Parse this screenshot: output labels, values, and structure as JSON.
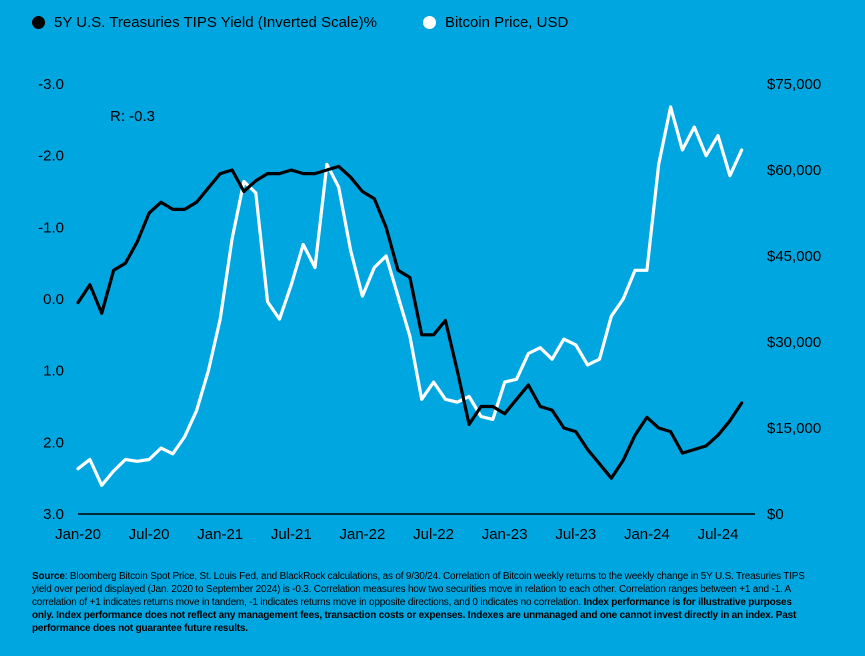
{
  "legend": {
    "tips_label": "5Y U.S. Treasuries TIPS Yield (Inverted Scale)%",
    "btc_label": "Bitcoin Price, USD"
  },
  "annotation": "R: -0.3",
  "footnote": {
    "source_label": "Source",
    "source_text": ": Bloomberg Bitcoin Spot Price, St. Louis Fed, and BlackRock calculations, as of 9/30/24. Correlation of Bitcoin weekly returns to the weekly change in 5Y U.S. Treasuries TIPS yield over period displayed (Jan. 2020 to September 2024) is -0.3. Correlation measures how two securities move in relation to each other. Correlation ranges between +1 and -1. A correlation of +1 indicates returns move in tandem, -1 indicates returns move in opposite directions, and 0 indicates no correlation.",
    "bold_text": "Index performance is for illustrative purposes only. Index performance does not reflect any management fees, transaction costs or expenses. Indexes are unmanaged and one cannot invest directly in an index. Past performance does not guarantee future results."
  },
  "chart_data": {
    "type": "line",
    "x_ticks": [
      "Jan-20",
      "Jul-20",
      "Jan-21",
      "Jul-21",
      "Jan-22",
      "Jul-22",
      "Jan-23",
      "Jul-23",
      "Jan-24",
      "Jul-24"
    ],
    "x_range": [
      "2019-12",
      "2024-09"
    ],
    "y_left": {
      "ticks": [
        "-3.0",
        "-2.0",
        "-1.0",
        "0.0",
        "1.0",
        "2.0",
        "3.0"
      ],
      "range": [
        3.0,
        -3.0
      ],
      "inverted": true
    },
    "y_right": {
      "ticks": [
        "$75,000",
        "$60,000",
        "$45,000",
        "$30,000",
        "$15,000",
        "$0"
      ],
      "range": [
        0,
        75000
      ]
    },
    "series": [
      {
        "name": "5Y U.S. Treasuries TIPS Yield (Inverted Scale)%",
        "axis": "left",
        "color": "#000000",
        "points": [
          [
            "2020-01",
            0.05
          ],
          [
            "2020-02",
            -0.2
          ],
          [
            "2020-03",
            0.2
          ],
          [
            "2020-04",
            -0.4
          ],
          [
            "2020-05",
            -0.5
          ],
          [
            "2020-06",
            -0.8
          ],
          [
            "2020-07",
            -1.2
          ],
          [
            "2020-08",
            -1.35
          ],
          [
            "2020-09",
            -1.25
          ],
          [
            "2020-10",
            -1.25
          ],
          [
            "2020-11",
            -1.35
          ],
          [
            "2020-12",
            -1.55
          ],
          [
            "2021-01",
            -1.75
          ],
          [
            "2021-02",
            -1.8
          ],
          [
            "2021-03",
            -1.5
          ],
          [
            "2021-04",
            -1.65
          ],
          [
            "2021-05",
            -1.75
          ],
          [
            "2021-06",
            -1.75
          ],
          [
            "2021-07",
            -1.8
          ],
          [
            "2021-08",
            -1.75
          ],
          [
            "2021-09",
            -1.75
          ],
          [
            "2021-10",
            -1.8
          ],
          [
            "2021-11",
            -1.85
          ],
          [
            "2021-12",
            -1.7
          ],
          [
            "2022-01",
            -1.5
          ],
          [
            "2022-02",
            -1.4
          ],
          [
            "2022-03",
            -1.0
          ],
          [
            "2022-04",
            -0.4
          ],
          [
            "2022-05",
            -0.3
          ],
          [
            "2022-06",
            0.5
          ],
          [
            "2022-07",
            0.5
          ],
          [
            "2022-08",
            0.3
          ],
          [
            "2022-09",
            1.0
          ],
          [
            "2022-10",
            1.75
          ],
          [
            "2022-11",
            1.5
          ],
          [
            "2022-12",
            1.5
          ],
          [
            "2023-01",
            1.6
          ],
          [
            "2023-02",
            1.4
          ],
          [
            "2023-03",
            1.2
          ],
          [
            "2023-04",
            1.5
          ],
          [
            "2023-05",
            1.55
          ],
          [
            "2023-06",
            1.8
          ],
          [
            "2023-07",
            1.85
          ],
          [
            "2023-08",
            2.1
          ],
          [
            "2023-09",
            2.3
          ],
          [
            "2023-10",
            2.5
          ],
          [
            "2023-11",
            2.25
          ],
          [
            "2023-12",
            1.9
          ],
          [
            "2024-01",
            1.65
          ],
          [
            "2024-02",
            1.8
          ],
          [
            "2024-03",
            1.85
          ],
          [
            "2024-04",
            2.15
          ],
          [
            "2024-05",
            2.1
          ],
          [
            "2024-06",
            2.05
          ],
          [
            "2024-07",
            1.9
          ],
          [
            "2024-08",
            1.7
          ],
          [
            "2024-09",
            1.45
          ]
        ]
      },
      {
        "name": "Bitcoin Price, USD",
        "axis": "right",
        "color": "#ffffff",
        "points": [
          [
            "2020-01",
            7900
          ],
          [
            "2020-02",
            9500
          ],
          [
            "2020-03",
            5000
          ],
          [
            "2020-04",
            7500
          ],
          [
            "2020-05",
            9500
          ],
          [
            "2020-06",
            9200
          ],
          [
            "2020-07",
            9500
          ],
          [
            "2020-08",
            11500
          ],
          [
            "2020-09",
            10500
          ],
          [
            "2020-10",
            13500
          ],
          [
            "2020-11",
            18000
          ],
          [
            "2020-12",
            25000
          ],
          [
            "2021-01",
            34000
          ],
          [
            "2021-02",
            48000
          ],
          [
            "2021-03",
            58000
          ],
          [
            "2021-04",
            56000
          ],
          [
            "2021-05",
            37000
          ],
          [
            "2021-06",
            34000
          ],
          [
            "2021-07",
            40000
          ],
          [
            "2021-08",
            47000
          ],
          [
            "2021-09",
            43000
          ],
          [
            "2021-10",
            61000
          ],
          [
            "2021-11",
            57000
          ],
          [
            "2021-12",
            46000
          ],
          [
            "2022-01",
            38000
          ],
          [
            "2022-02",
            43000
          ],
          [
            "2022-03",
            45000
          ],
          [
            "2022-04",
            38000
          ],
          [
            "2022-05",
            31000
          ],
          [
            "2022-06",
            20000
          ],
          [
            "2022-07",
            23000
          ],
          [
            "2022-08",
            20000
          ],
          [
            "2022-09",
            19500
          ],
          [
            "2022-10",
            20500
          ],
          [
            "2022-11",
            17000
          ],
          [
            "2022-12",
            16500
          ],
          [
            "2023-01",
            23000
          ],
          [
            "2023-02",
            23500
          ],
          [
            "2023-03",
            28000
          ],
          [
            "2023-04",
            29000
          ],
          [
            "2023-05",
            27000
          ],
          [
            "2023-06",
            30500
          ],
          [
            "2023-07",
            29500
          ],
          [
            "2023-08",
            26000
          ],
          [
            "2023-09",
            27000
          ],
          [
            "2023-10",
            34500
          ],
          [
            "2023-11",
            37500
          ],
          [
            "2023-12",
            42500
          ],
          [
            "2024-01",
            42500
          ],
          [
            "2024-02",
            61000
          ],
          [
            "2024-03",
            71000
          ],
          [
            "2024-04",
            63500
          ],
          [
            "2024-05",
            67500
          ],
          [
            "2024-06",
            62500
          ],
          [
            "2024-07",
            66000
          ],
          [
            "2024-08",
            59000
          ],
          [
            "2024-09",
            63500
          ]
        ]
      }
    ]
  }
}
